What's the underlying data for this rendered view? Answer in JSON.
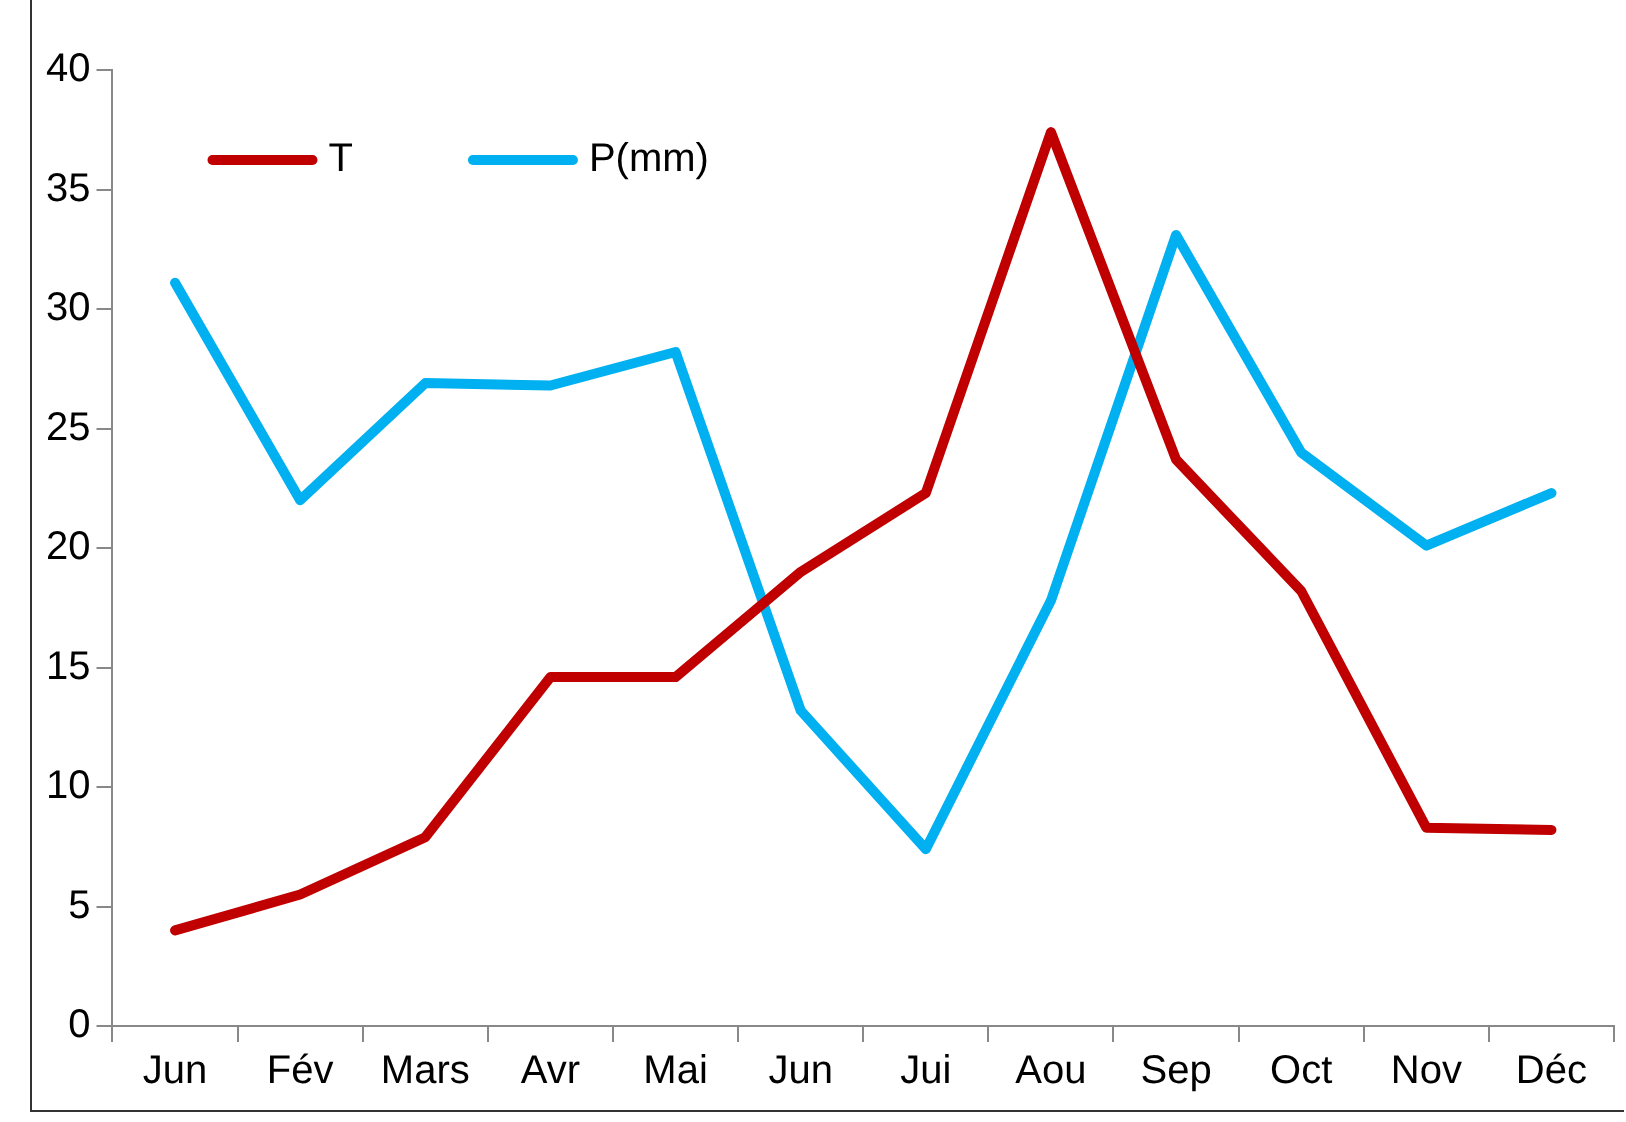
{
  "chart_data": {
    "type": "line",
    "categories": [
      "Jun",
      "Fév",
      "Mars",
      "Avr",
      "Mai",
      "Jun",
      "Jui",
      "Aou",
      "Sep",
      "Oct",
      "Nov",
      "Déc"
    ],
    "series": [
      {
        "name": "T",
        "color": "#c00000",
        "values": [
          4.0,
          5.5,
          7.9,
          14.6,
          14.6,
          19.0,
          22.3,
          37.4,
          23.7,
          18.2,
          8.3,
          8.2
        ]
      },
      {
        "name": "P(mm)",
        "color": "#00b0f0",
        "values": [
          31.1,
          22.0,
          26.9,
          26.8,
          28.2,
          13.2,
          7.4,
          17.8,
          33.1,
          24.0,
          20.1,
          22.3
        ]
      }
    ],
    "ylim": [
      0,
      40
    ],
    "yticks": [
      0,
      5,
      10,
      15,
      20,
      25,
      30,
      35,
      40
    ],
    "grid": false,
    "legend": "top left",
    "marker": "none",
    "line_style": "solid"
  }
}
